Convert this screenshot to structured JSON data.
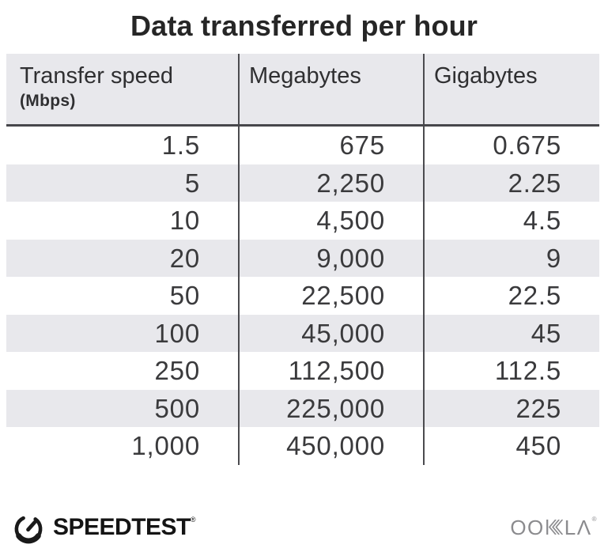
{
  "title": "Data transferred per hour",
  "table": {
    "columns": [
      {
        "label": "Transfer speed",
        "sublabel": "(Mbps)"
      },
      {
        "label": "Megabytes",
        "sublabel": ""
      },
      {
        "label": "Gigabytes",
        "sublabel": ""
      }
    ],
    "rows": [
      [
        "1.5",
        "675",
        "0.675"
      ],
      [
        "5",
        "2,250",
        "2.25"
      ],
      [
        "10",
        "4,500",
        "4.5"
      ],
      [
        "20",
        "9,000",
        "9"
      ],
      [
        "50",
        "22,500",
        "22.5"
      ],
      [
        "100",
        "45,000",
        "45"
      ],
      [
        "250",
        "112,500",
        "112.5"
      ],
      [
        "500",
        "225,000",
        "225"
      ],
      [
        "1,000",
        "450,000",
        "450"
      ]
    ]
  },
  "chart_data": {
    "type": "table",
    "title": "Data transferred per hour",
    "columns": [
      "Transfer speed (Mbps)",
      "Megabytes",
      "Gigabytes"
    ],
    "rows": [
      [
        1.5,
        675,
        0.675
      ],
      [
        5,
        2250,
        2.25
      ],
      [
        10,
        4500,
        4.5
      ],
      [
        20,
        9000,
        9
      ],
      [
        50,
        22500,
        22.5
      ],
      [
        100,
        45000,
        45
      ],
      [
        250,
        112500,
        112.5
      ],
      [
        500,
        225000,
        225
      ],
      [
        1000,
        450000,
        450
      ]
    ]
  },
  "footer": {
    "speedtest_label": "SPEEDTEST",
    "speedtest_mark": "®",
    "ookla_oo": "OO",
    "ookla_la": "LΛ",
    "ookla_mark": "®",
    "ookla_label": "OOKLA"
  },
  "colors": {
    "background": "#ffffff",
    "header_bg": "#e8e8ec",
    "stripe_bg": "#e8e8ec",
    "divider": "#4b4b4f",
    "header_border": "#47474b",
    "title_text": "#262626",
    "cell_text": "#3a3a3c",
    "speedtest_black": "#141414",
    "ookla_gray": "#8b8b8e"
  }
}
